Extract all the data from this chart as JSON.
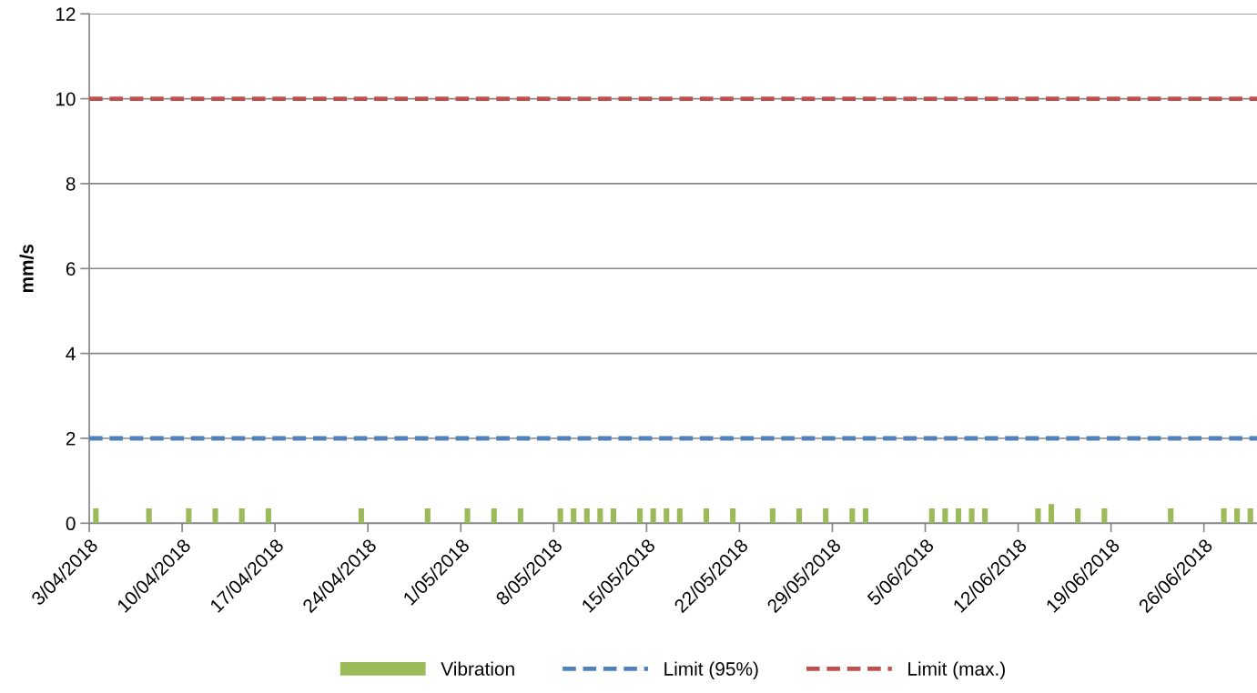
{
  "chart_data": {
    "type": "bar",
    "ylabel": "mm/s",
    "xlim": [
      "2018-04-03",
      "2018-06-30"
    ],
    "xticks": [
      {
        "value": "2018-04-03",
        "label": "3/04/2018"
      },
      {
        "value": "2018-04-10",
        "label": "10/04/2018"
      },
      {
        "value": "2018-04-17",
        "label": "17/04/2018"
      },
      {
        "value": "2018-04-24",
        "label": "24/04/2018"
      },
      {
        "value": "2018-05-01",
        "label": "1/05/2018"
      },
      {
        "value": "2018-05-08",
        "label": "8/05/2018"
      },
      {
        "value": "2018-05-15",
        "label": "15/05/2018"
      },
      {
        "value": "2018-05-22",
        "label": "22/05/2018"
      },
      {
        "value": "2018-05-29",
        "label": "29/05/2018"
      },
      {
        "value": "2018-06-05",
        "label": "5/06/2018"
      },
      {
        "value": "2018-06-12",
        "label": "12/06/2018"
      },
      {
        "value": "2018-06-19",
        "label": "19/06/2018"
      },
      {
        "value": "2018-06-26",
        "label": "26/06/2018"
      }
    ],
    "ylim": [
      0,
      12
    ],
    "yticks": [
      0,
      2,
      4,
      6,
      8,
      10,
      12
    ],
    "grid": "y",
    "legend": "bottom",
    "series": [
      {
        "name": "Vibration",
        "color": "#9bbb59",
        "x": [
          "2018-04-03T12:00",
          "2018-04-07T12:00",
          "2018-04-10T12:00",
          "2018-04-12T12:00",
          "2018-04-14T12:00",
          "2018-04-16T12:00",
          "2018-04-23T12:00",
          "2018-04-28T12:00",
          "2018-05-01T12:00",
          "2018-05-03T12:00",
          "2018-05-05T12:00",
          "2018-05-08T12:00",
          "2018-05-09T12:00",
          "2018-05-10T12:00",
          "2018-05-11T12:00",
          "2018-05-12T12:00",
          "2018-05-14T12:00",
          "2018-05-15T12:00",
          "2018-05-16T12:00",
          "2018-05-17T12:00",
          "2018-05-19T12:00",
          "2018-05-21T12:00",
          "2018-05-24T12:00",
          "2018-05-26T12:00",
          "2018-05-28T12:00",
          "2018-05-30T12:00",
          "2018-05-31T12:00",
          "2018-06-05T12:00",
          "2018-06-06T12:00",
          "2018-06-07T12:00",
          "2018-06-08T12:00",
          "2018-06-09T12:00",
          "2018-06-13T12:00",
          "2018-06-14T12:00",
          "2018-06-16T12:00",
          "2018-06-18T12:00",
          "2018-06-23T12:00",
          "2018-06-27T12:00",
          "2018-06-28T12:00",
          "2018-06-29T12:00"
        ],
        "values": [
          0.35,
          0.35,
          0.35,
          0.35,
          0.35,
          0.35,
          0.35,
          0.35,
          0.35,
          0.35,
          0.35,
          0.35,
          0.35,
          0.35,
          0.35,
          0.35,
          0.35,
          0.35,
          0.35,
          0.35,
          0.35,
          0.35,
          0.35,
          0.35,
          0.35,
          0.35,
          0.35,
          0.35,
          0.35,
          0.35,
          0.35,
          0.35,
          0.35,
          0.45,
          0.35,
          0.35,
          0.35,
          0.35,
          0.35,
          0.35
        ]
      },
      {
        "name": "Limit (95%)",
        "type": "line",
        "color": "#4f81bd",
        "line_style": "dashed",
        "x": [
          "2018-04-03",
          "2018-06-30"
        ],
        "values": [
          2,
          2
        ]
      },
      {
        "name": "Limit (max.)",
        "type": "line",
        "color": "#c0504d",
        "line_style": "dashed",
        "x": [
          "2018-04-03",
          "2018-06-30"
        ],
        "values": [
          10,
          10
        ]
      }
    ]
  }
}
